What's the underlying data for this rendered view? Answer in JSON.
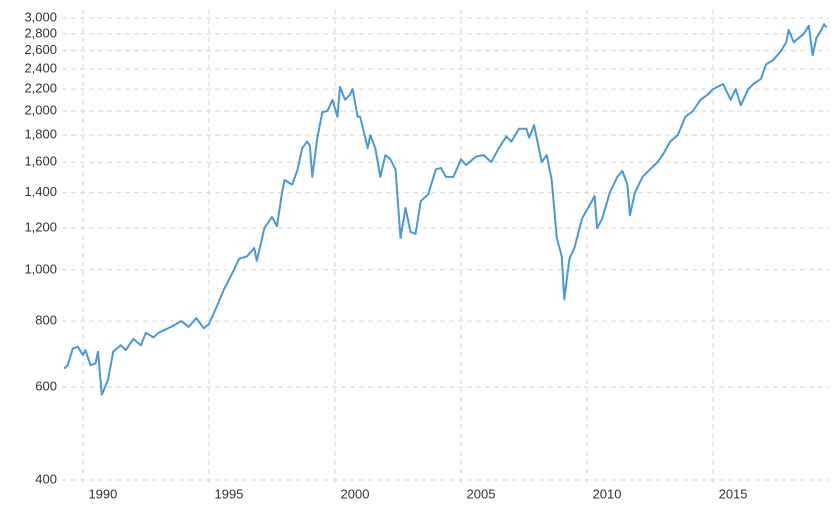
{
  "chart_data": {
    "type": "line",
    "log_y": true,
    "grid": true,
    "color": "#4a98d6",
    "x": [
      1989.25,
      1989.4,
      1989.6,
      1989.8,
      1990.0,
      1990.1,
      1990.3,
      1990.5,
      1990.6,
      1990.75,
      1991.0,
      1991.2,
      1991.5,
      1991.7,
      1992.0,
      1992.3,
      1992.5,
      1992.8,
      1993.0,
      1993.5,
      1993.9,
      1994.2,
      1994.5,
      1994.8,
      1995.0,
      1995.3,
      1995.6,
      1995.9,
      1996.2,
      1996.5,
      1996.8,
      1996.9,
      1997.2,
      1997.5,
      1997.7,
      1997.9,
      1998.0,
      1998.3,
      1998.5,
      1998.7,
      1998.9,
      1999.0,
      1999.1,
      1999.3,
      1999.5,
      1999.7,
      1999.9,
      2000.1,
      2000.2,
      2000.4,
      2000.6,
      2000.7,
      2000.9,
      2001.0,
      2001.3,
      2001.4,
      2001.6,
      2001.8,
      2002.0,
      2002.2,
      2002.4,
      2002.6,
      2002.8,
      2003.0,
      2003.2,
      2003.4,
      2003.7,
      2004.0,
      2004.2,
      2004.4,
      2004.7,
      2005.0,
      2005.2,
      2005.6,
      2005.9,
      2006.2,
      2006.5,
      2006.8,
      2007.0,
      2007.3,
      2007.6,
      2007.7,
      2007.9,
      2008.2,
      2008.4,
      2008.6,
      2008.8,
      2009.0,
      2009.1,
      2009.3,
      2009.5,
      2009.8,
      2010.0,
      2010.3,
      2010.4,
      2010.6,
      2010.9,
      2011.2,
      2011.4,
      2011.6,
      2011.7,
      2011.9,
      2012.2,
      2012.5,
      2012.8,
      2013.0,
      2013.3,
      2013.6,
      2013.9,
      2014.2,
      2014.5,
      2014.8,
      2015.0,
      2015.4,
      2015.7,
      2015.9,
      2016.1,
      2016.4,
      2016.6,
      2016.9,
      2017.1,
      2017.4,
      2017.7,
      2017.9,
      2018.0,
      2018.2,
      2018.6,
      2018.8,
      2018.95,
      2019.1,
      2019.3,
      2019.4,
      2019.5
    ],
    "values": [
      650,
      660,
      710,
      715,
      690,
      705,
      660,
      665,
      700,
      580,
      620,
      700,
      720,
      705,
      740,
      720,
      760,
      745,
      760,
      780,
      800,
      780,
      810,
      775,
      790,
      850,
      920,
      980,
      1050,
      1060,
      1100,
      1040,
      1200,
      1260,
      1210,
      1400,
      1480,
      1450,
      1540,
      1700,
      1750,
      1720,
      1500,
      1780,
      1990,
      2000,
      2100,
      1950,
      2220,
      2100,
      2150,
      2200,
      1950,
      1950,
      1700,
      1800,
      1700,
      1500,
      1650,
      1620,
      1550,
      1150,
      1310,
      1180,
      1170,
      1350,
      1390,
      1550,
      1560,
      1500,
      1500,
      1620,
      1580,
      1640,
      1650,
      1600,
      1700,
      1790,
      1750,
      1850,
      1850,
      1780,
      1880,
      1600,
      1650,
      1480,
      1150,
      1060,
      880,
      1050,
      1100,
      1250,
      1300,
      1380,
      1200,
      1250,
      1400,
      1500,
      1540,
      1450,
      1270,
      1400,
      1500,
      1550,
      1600,
      1650,
      1750,
      1800,
      1950,
      2000,
      2100,
      2150,
      2200,
      2250,
      2100,
      2200,
      2050,
      2200,
      2250,
      2300,
      2450,
      2500,
      2600,
      2700,
      2850,
      2700,
      2800,
      2900,
      2550,
      2750,
      2850,
      2920,
      2880
    ],
    "xlim": [
      1989.17,
      2019.6
    ],
    "xticks": [
      1990,
      1995,
      2000,
      2005,
      2010,
      2015
    ],
    "ylim": [
      400,
      3000
    ],
    "yticks": [
      400,
      600,
      800,
      {
        "value": 1000,
        "label": "1,000"
      },
      {
        "value": 1200,
        "label": "1,200"
      },
      {
        "value": 1400,
        "label": "1,400"
      },
      {
        "value": 1600,
        "label": "1,600"
      },
      {
        "value": 1800,
        "label": "1,800"
      },
      {
        "value": 2000,
        "label": "2,000"
      },
      {
        "value": 2200,
        "label": "2,200"
      },
      {
        "value": 2400,
        "label": "2,400"
      },
      {
        "value": 2600,
        "label": "2,600"
      },
      {
        "value": 2800,
        "label": "2,800"
      },
      {
        "value": 3000,
        "label": "3,000"
      }
    ]
  }
}
